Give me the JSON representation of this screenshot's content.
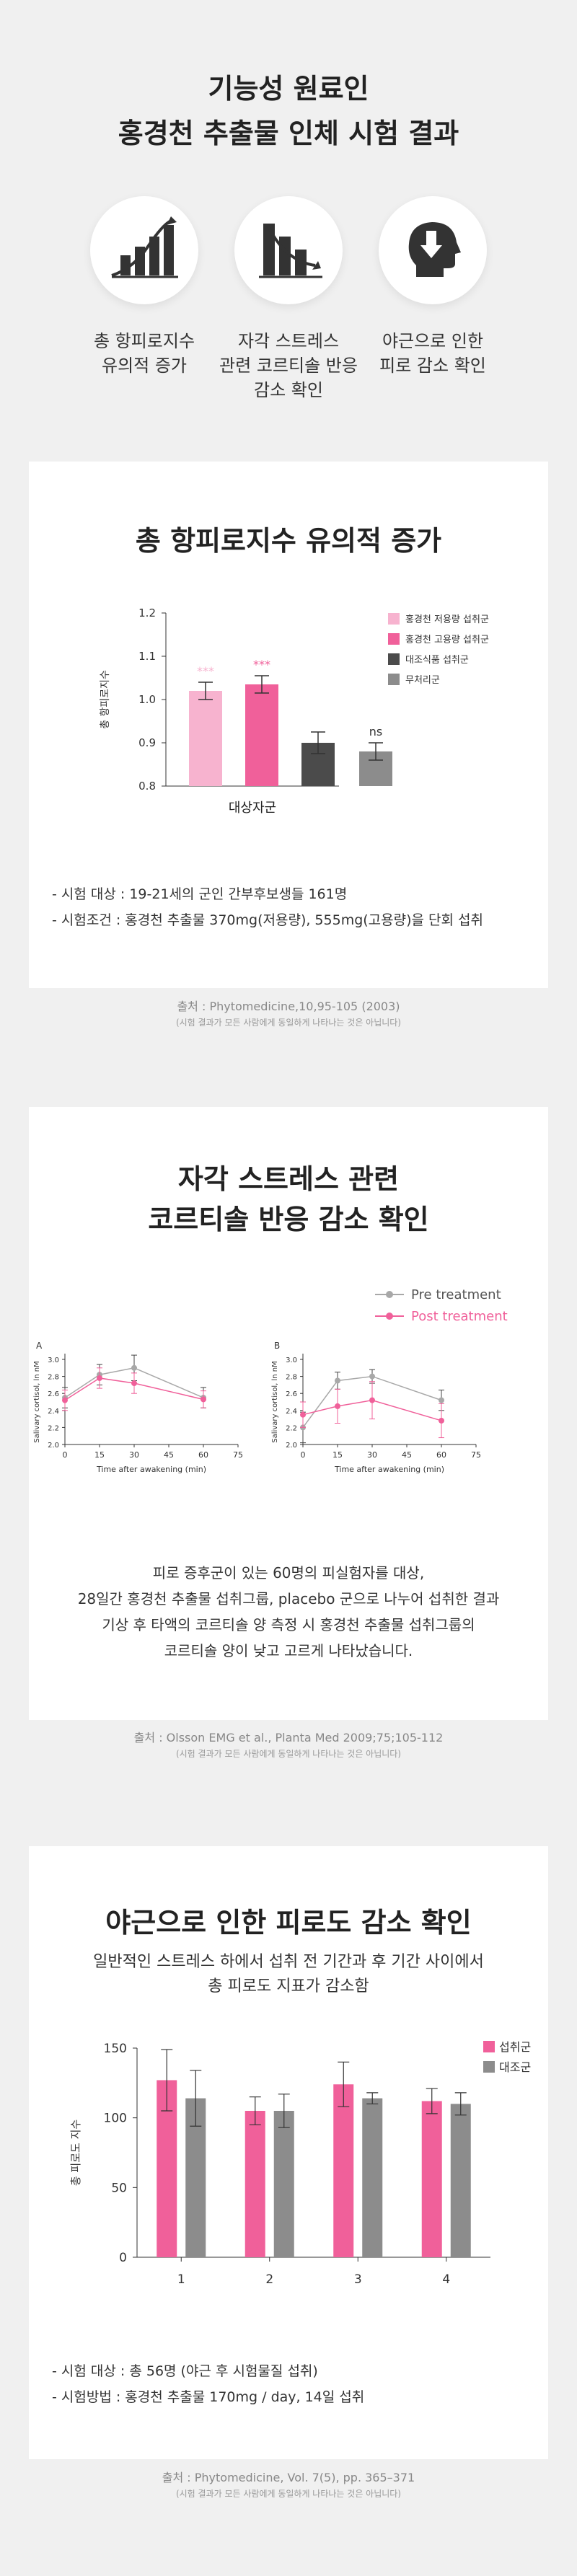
{
  "header": {
    "title_line1": "기능성 원료인",
    "title_line2": "홍경천 추출물 인체 시험 결과",
    "icons": [
      {
        "icon": "bar-growth-icon",
        "line1": "총 항피로지수",
        "line2": "유의적 증가",
        "line3": ""
      },
      {
        "icon": "bar-decline-icon",
        "line1": "자각 스트레스",
        "line2": "관련 코르티솔 반응",
        "line3": "감소 확인"
      },
      {
        "icon": "head-down-arrow-icon",
        "line1": "야근으로 인한",
        "line2": "피로 감소 확인",
        "line3": ""
      }
    ]
  },
  "section1": {
    "title": "총 항피로지수 유의적 증가",
    "notes": [
      "- 시험 대상 : 19-21세의 군인 간부후보생들 161명",
      "- 시험조건 : 홍경천 추출물 370mg(저용량), 555mg(고용량)을 단회 섭취"
    ],
    "source": "출처 : Phytomedicine,10,95-105 (2003)",
    "disclaimer": "(시험 결과가 모든 사람에게 동일하게 나타나는 것은 아닙니다)",
    "chart_data": {
      "type": "bar",
      "categories": [
        "홍경천 저용량 섭취군",
        "홍경천 고용량 섭취군",
        "대조식품 섭취군",
        "무처리군"
      ],
      "values": [
        1.02,
        1.035,
        0.9,
        0.88
      ],
      "errors": [
        0.02,
        0.02,
        0.025,
        0.02
      ],
      "colors": [
        "#f7b3cf",
        "#f0609a",
        "#4b4b4b",
        "#8c8c8c"
      ],
      "significance": [
        "***",
        "***",
        "",
        "ns"
      ],
      "xlabel": "대상자군",
      "ylabel": "총 항피로지수",
      "ylim": [
        0.8,
        1.2
      ],
      "yticks": [
        "0.8",
        "0.9",
        "1.0",
        "1.1",
        "1.2"
      ],
      "legend": [
        "홍경천 저용량 섭취군",
        "홍경천 고용량 섭취군",
        "대조식품 섭취군",
        "무처리군"
      ],
      "legend_position": "top-right"
    }
  },
  "section2": {
    "title_line1": "자각 스트레스 관련",
    "title_line2": "코르티솔 반응 감소 확인",
    "legend": [
      "Pre treatment",
      "Post treatment"
    ],
    "colors": {
      "pre": "#a8a8a8",
      "post": "#f0609a"
    },
    "paragraph": [
      "피로 증후군이 있는 60명의 피실험자를 대상,",
      "28일간 홍경천 추출물 섭취그룹, placebo 군으로 나누어 섭취한 결과",
      "기상 후 타액의 코르티솔 양 측정 시 홍경천 추출물 섭취그룹의",
      "코르티솔 양이 낮고 고르게 나타났습니다."
    ],
    "source": "출처 : Olsson EMG et al., Planta Med 2009;75;105-112",
    "disclaimer": "(시험 결과가 모든 사람에게 동일하게 나타나는 것은 아닙니다)",
    "chart_data": [
      {
        "type": "line",
        "panel": "A",
        "x": [
          0,
          15,
          30,
          60
        ],
        "xticks": [
          "0",
          "15",
          "30",
          "45",
          "60",
          "75"
        ],
        "yticks": [
          "2.0",
          "2.2",
          "2.4",
          "2.6",
          "2.8",
          "3.0"
        ],
        "xlabel": "Time after awakening (min)",
        "ylabel": "Salivary cortisol, ln nM",
        "xlim": [
          0,
          75
        ],
        "ylim": [
          2.0,
          3.0
        ],
        "series": [
          {
            "name": "Pre treatment",
            "values": [
              2.55,
              2.82,
              2.9,
              2.55
            ],
            "errors": [
              0.12,
              0.12,
              0.15,
              0.12
            ]
          },
          {
            "name": "Post treatment",
            "values": [
              2.52,
              2.78,
              2.72,
              2.53
            ],
            "errors": [
              0.12,
              0.12,
              0.12,
              0.1
            ]
          }
        ]
      },
      {
        "type": "line",
        "panel": "B",
        "x": [
          0,
          15,
          30,
          60
        ],
        "xticks": [
          "0",
          "15",
          "30",
          "45",
          "60",
          "75"
        ],
        "yticks": [
          "2.0",
          "2.2",
          "2.4",
          "2.6",
          "2.8",
          "3.0"
        ],
        "xlabel": "Time after awakening (min)",
        "ylabel": "Salivary cortisol, ln nM",
        "xlim": [
          0,
          75
        ],
        "ylim": [
          2.0,
          3.0
        ],
        "series": [
          {
            "name": "Pre treatment",
            "values": [
              2.2,
              2.75,
              2.8,
              2.52
            ],
            "errors": [
              0.18,
              0.1,
              0.08,
              0.12
            ]
          },
          {
            "name": "Post treatment",
            "values": [
              2.35,
              2.45,
              2.52,
              2.28
            ],
            "errors": [
              0.15,
              0.2,
              0.22,
              0.2
            ]
          }
        ]
      }
    ]
  },
  "section3": {
    "title": "야근으로 인한 피로도 감소 확인",
    "subtitle_line1": "일반적인 스트레스 하에서 섭취 전 기간과 후 기간 사이에서",
    "subtitle_line2": "총 피로도 지표가 감소함",
    "notes": [
      "- 시험 대상 : 총 56명 (야근 후 시험물질 섭취)",
      "- 시험방법 : 홍경천 추출물 170mg / day, 14일 섭취"
    ],
    "source": "출처 : Phytomedicine, Vol. 7(5), pp. 365–371",
    "disclaimer": "(시험 결과가 모든 사람에게 동일하게 나타나는 것은 아닙니다)",
    "chart_data": {
      "type": "bar",
      "categories": [
        "1",
        "2",
        "3",
        "4"
      ],
      "series": [
        {
          "name": "섭취군",
          "values": [
            127,
            105,
            124,
            112
          ],
          "errors": [
            22,
            10,
            16,
            9
          ],
          "color": "#f0609a"
        },
        {
          "name": "대조군",
          "values": [
            114,
            105,
            114,
            110
          ],
          "errors": [
            20,
            12,
            4,
            8
          ],
          "color": "#8c8c8c"
        }
      ],
      "ylabel": "총 피로도 지수",
      "ylim": [
        0,
        150
      ],
      "yticks": [
        "0",
        "50",
        "100",
        "150"
      ],
      "legend_position": "top-right"
    }
  }
}
